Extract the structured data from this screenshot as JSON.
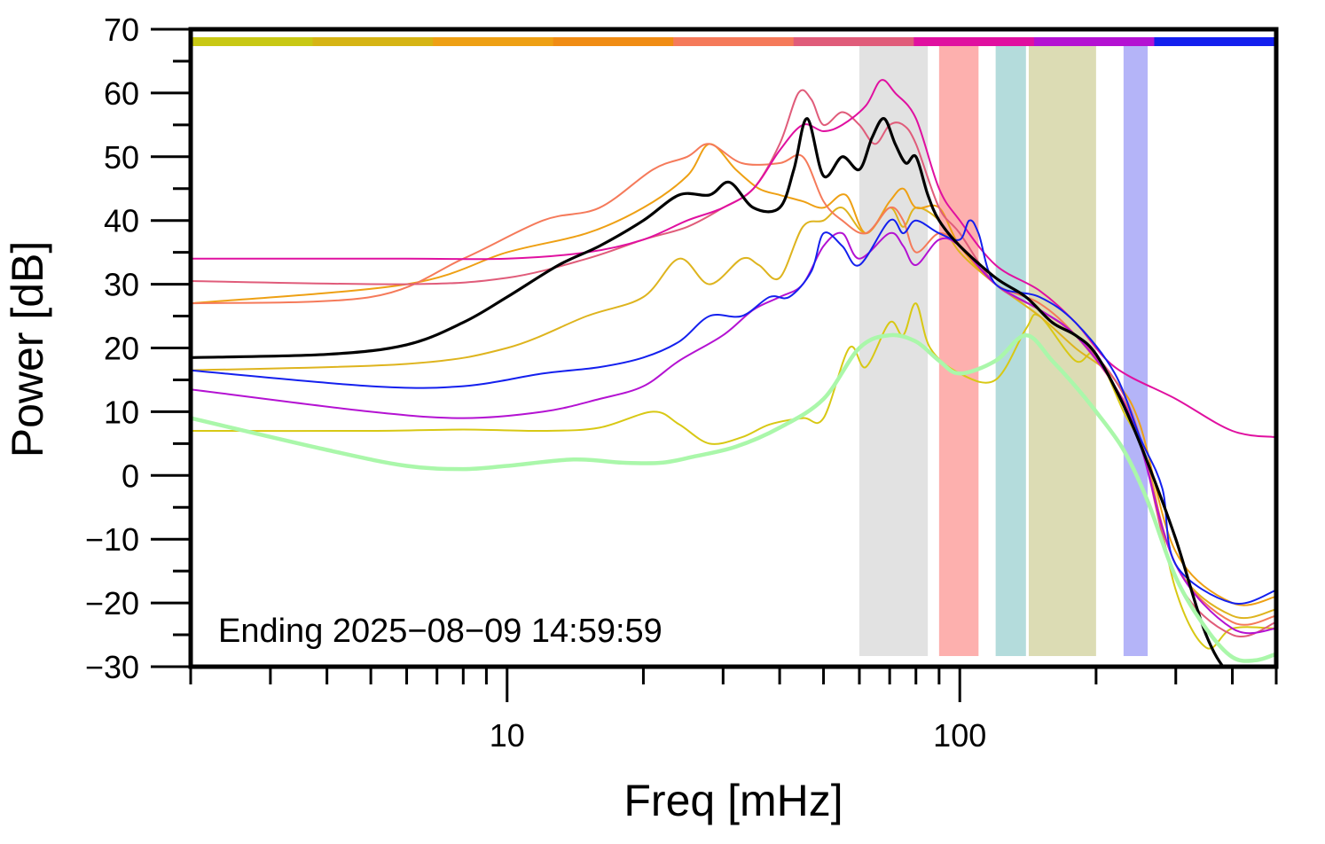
{
  "chart_data": {
    "type": "line",
    "xlabel": "Freq [mHz]",
    "ylabel": "Power [dB]",
    "x_scale": "log",
    "xlim": [
      2,
      500
    ],
    "ylim": [
      -30,
      70
    ],
    "xtick_labels": [
      {
        "value": 10,
        "label": "10"
      },
      {
        "value": 100,
        "label": "100"
      }
    ],
    "yticks": [
      -30,
      -20,
      -10,
      0,
      10,
      20,
      30,
      40,
      50,
      60,
      70
    ],
    "ytick_labels": [
      "−30",
      "−20",
      "−10",
      "0",
      "10",
      "20",
      "30",
      "40",
      "50",
      "60",
      "70"
    ],
    "annotation": "Ending 2025−08−09 14:59:59",
    "grid": false,
    "time_color_bar": [
      "#c8c814",
      "#d6b414",
      "#eea014",
      "#f08c14",
      "#f57a5a",
      "#e05c7a",
      "#e010a0",
      "#b412d2",
      "#1420ee"
    ],
    "bands": [
      {
        "x0": 60,
        "x1": 85,
        "color": "#e2e2e2"
      },
      {
        "x0": 90,
        "x1": 110,
        "color": "#fdb0ae"
      },
      {
        "x0": 120,
        "x1": 140,
        "color": "#b4dcdc"
      },
      {
        "x0": 142,
        "x1": 200,
        "color": "#dcdcb4"
      },
      {
        "x0": 230,
        "x1": 260,
        "color": "#b4b4f8"
      }
    ],
    "series": [
      {
        "color": "#d8c814",
        "width": 2,
        "points": [
          [
            2,
            7
          ],
          [
            5,
            7
          ],
          [
            8,
            7.2
          ],
          [
            12,
            7
          ],
          [
            16,
            7.5
          ],
          [
            21,
            10
          ],
          [
            24,
            8
          ],
          [
            28,
            5
          ],
          [
            33,
            6
          ],
          [
            38,
            8
          ],
          [
            45,
            9
          ],
          [
            50,
            9
          ],
          [
            57,
            20
          ],
          [
            62,
            17
          ],
          [
            70,
            24
          ],
          [
            75,
            22
          ],
          [
            80,
            27
          ],
          [
            86,
            20
          ],
          [
            100,
            16
          ],
          [
            120,
            15
          ],
          [
            140,
            23
          ],
          [
            150,
            25
          ],
          [
            180,
            18
          ],
          [
            200,
            19
          ],
          [
            230,
            10
          ],
          [
            260,
            2
          ],
          [
            300,
            -18
          ],
          [
            350,
            -27
          ],
          [
            400,
            -24
          ],
          [
            500,
            -24
          ]
        ]
      },
      {
        "color": "#deb41e",
        "width": 2,
        "points": [
          [
            2,
            16.5
          ],
          [
            6,
            17.5
          ],
          [
            10,
            20
          ],
          [
            15,
            25
          ],
          [
            20,
            28
          ],
          [
            24,
            34
          ],
          [
            28,
            30
          ],
          [
            33,
            34
          ],
          [
            36,
            33
          ],
          [
            40,
            31
          ],
          [
            45,
            39
          ],
          [
            50,
            40
          ],
          [
            55,
            42
          ],
          [
            62,
            38
          ],
          [
            70,
            42
          ],
          [
            75,
            39
          ],
          [
            80,
            42
          ],
          [
            90,
            40
          ],
          [
            100,
            35
          ],
          [
            120,
            30
          ],
          [
            150,
            25
          ],
          [
            180,
            20
          ],
          [
            220,
            15
          ],
          [
            250,
            6
          ],
          [
            300,
            -14
          ],
          [
            400,
            -22
          ],
          [
            500,
            -21
          ]
        ]
      },
      {
        "color": "#eea014",
        "width": 2,
        "points": [
          [
            2,
            27
          ],
          [
            6,
            30
          ],
          [
            10,
            35
          ],
          [
            15,
            38
          ],
          [
            20,
            42
          ],
          [
            25,
            47
          ],
          [
            28,
            52
          ],
          [
            32,
            48
          ],
          [
            36,
            45
          ],
          [
            40,
            44
          ],
          [
            45,
            43
          ],
          [
            50,
            42
          ],
          [
            56,
            44
          ],
          [
            62,
            38
          ],
          [
            70,
            43
          ],
          [
            75,
            45
          ],
          [
            80,
            42
          ],
          [
            90,
            42
          ],
          [
            100,
            36
          ],
          [
            120,
            30
          ],
          [
            150,
            26
          ],
          [
            180,
            22
          ],
          [
            220,
            15
          ],
          [
            250,
            8
          ],
          [
            300,
            -12
          ],
          [
            400,
            -20
          ],
          [
            500,
            -19
          ]
        ]
      },
      {
        "color": "#f57a5a",
        "width": 2,
        "points": [
          [
            2,
            27
          ],
          [
            5,
            28
          ],
          [
            8,
            34
          ],
          [
            12,
            40
          ],
          [
            16,
            42
          ],
          [
            21,
            48
          ],
          [
            25,
            50
          ],
          [
            28,
            52
          ],
          [
            33,
            49
          ],
          [
            40,
            49
          ],
          [
            45,
            50
          ],
          [
            50,
            43
          ],
          [
            55,
            40
          ],
          [
            62,
            38
          ],
          [
            70,
            42
          ],
          [
            75,
            40
          ],
          [
            80,
            35
          ],
          [
            90,
            38
          ],
          [
            100,
            36
          ],
          [
            120,
            30
          ],
          [
            150,
            27
          ],
          [
            180,
            22
          ],
          [
            220,
            14
          ],
          [
            250,
            6
          ],
          [
            300,
            -14
          ],
          [
            400,
            -23
          ],
          [
            500,
            -22
          ]
        ]
      },
      {
        "color": "#e05c7a",
        "width": 2,
        "points": [
          [
            2,
            30.5
          ],
          [
            6,
            30
          ],
          [
            10,
            31
          ],
          [
            15,
            34
          ],
          [
            20,
            37
          ],
          [
            25,
            39
          ],
          [
            30,
            42
          ],
          [
            35,
            45
          ],
          [
            40,
            52
          ],
          [
            44,
            60
          ],
          [
            47,
            59
          ],
          [
            50,
            55
          ],
          [
            55,
            57
          ],
          [
            60,
            55
          ],
          [
            65,
            52
          ],
          [
            70,
            55
          ],
          [
            75,
            55
          ],
          [
            80,
            52
          ],
          [
            90,
            42
          ],
          [
            100,
            38
          ],
          [
            120,
            30
          ],
          [
            150,
            26
          ],
          [
            180,
            22
          ],
          [
            220,
            15
          ],
          [
            250,
            6
          ],
          [
            300,
            -16
          ],
          [
            400,
            -25
          ],
          [
            500,
            -23
          ]
        ]
      },
      {
        "color": "#e010a0",
        "width": 2,
        "points": [
          [
            2,
            34
          ],
          [
            6,
            34
          ],
          [
            10,
            34
          ],
          [
            15,
            35
          ],
          [
            20,
            37
          ],
          [
            25,
            40
          ],
          [
            30,
            42
          ],
          [
            35,
            45
          ],
          [
            40,
            51
          ],
          [
            45,
            55
          ],
          [
            50,
            54
          ],
          [
            55,
            55
          ],
          [
            62,
            58
          ],
          [
            67,
            62
          ],
          [
            72,
            60
          ],
          [
            80,
            56
          ],
          [
            90,
            45
          ],
          [
            100,
            40
          ],
          [
            120,
            33
          ],
          [
            150,
            29
          ],
          [
            180,
            24
          ],
          [
            220,
            17
          ],
          [
            300,
            12
          ],
          [
            400,
            7
          ],
          [
            500,
            6
          ]
        ]
      },
      {
        "color": "#b412d2",
        "width": 2,
        "points": [
          [
            2,
            13.5
          ],
          [
            5,
            10
          ],
          [
            8,
            9
          ],
          [
            12,
            10
          ],
          [
            16,
            12
          ],
          [
            20,
            14
          ],
          [
            24,
            18
          ],
          [
            30,
            22
          ],
          [
            35,
            26
          ],
          [
            40,
            28
          ],
          [
            45,
            30
          ],
          [
            50,
            36
          ],
          [
            55,
            38
          ],
          [
            60,
            34
          ],
          [
            70,
            38
          ],
          [
            75,
            36
          ],
          [
            80,
            33
          ],
          [
            90,
            37
          ],
          [
            100,
            36
          ],
          [
            120,
            30
          ],
          [
            150,
            26
          ],
          [
            180,
            22
          ],
          [
            220,
            14
          ],
          [
            250,
            5
          ],
          [
            300,
            -14
          ],
          [
            400,
            -24
          ],
          [
            500,
            -24
          ]
        ]
      },
      {
        "color": "#1420ee",
        "width": 2,
        "points": [
          [
            2,
            16.5
          ],
          [
            5,
            14
          ],
          [
            8,
            14
          ],
          [
            12,
            16
          ],
          [
            16,
            17
          ],
          [
            20,
            18.5
          ],
          [
            24,
            21
          ],
          [
            28,
            25
          ],
          [
            33,
            25
          ],
          [
            38,
            28
          ],
          [
            42,
            28
          ],
          [
            47,
            32
          ],
          [
            50,
            38
          ],
          [
            55,
            36
          ],
          [
            60,
            33
          ],
          [
            70,
            40
          ],
          [
            75,
            38
          ],
          [
            80,
            40
          ],
          [
            90,
            38
          ],
          [
            100,
            37
          ],
          [
            105,
            40
          ],
          [
            110,
            38
          ],
          [
            120,
            30
          ],
          [
            150,
            28
          ],
          [
            180,
            24
          ],
          [
            220,
            16
          ],
          [
            250,
            6
          ],
          [
            280,
            -2
          ],
          [
            300,
            -14
          ],
          [
            400,
            -20
          ],
          [
            500,
            -18
          ]
        ]
      },
      {
        "color": "#000000",
        "width": 3.2,
        "points": [
          [
            2,
            18.5
          ],
          [
            4,
            19
          ],
          [
            6,
            20.5
          ],
          [
            8,
            24
          ],
          [
            10,
            28
          ],
          [
            13,
            33
          ],
          [
            16,
            36
          ],
          [
            20,
            40
          ],
          [
            24,
            44
          ],
          [
            28,
            44
          ],
          [
            31,
            46
          ],
          [
            35,
            42
          ],
          [
            40,
            42
          ],
          [
            43,
            48
          ],
          [
            46,
            56
          ],
          [
            50,
            47
          ],
          [
            55,
            50
          ],
          [
            60,
            48
          ],
          [
            64,
            53
          ],
          [
            68,
            56
          ],
          [
            72,
            52
          ],
          [
            76,
            49
          ],
          [
            80,
            50
          ],
          [
            85,
            44
          ],
          [
            90,
            40
          ],
          [
            100,
            36
          ],
          [
            120,
            31
          ],
          [
            140,
            28
          ],
          [
            160,
            24
          ],
          [
            180,
            22
          ],
          [
            200,
            19
          ],
          [
            230,
            11
          ],
          [
            260,
            2
          ],
          [
            300,
            -10
          ],
          [
            350,
            -25
          ],
          [
            400,
            -32
          ],
          [
            500,
            -40
          ]
        ]
      },
      {
        "color": "#aaf7aa",
        "width": 4.5,
        "points": [
          [
            2,
            9
          ],
          [
            4,
            4
          ],
          [
            6,
            1.5
          ],
          [
            8,
            1
          ],
          [
            10,
            1.5
          ],
          [
            14,
            2.5
          ],
          [
            18,
            2
          ],
          [
            22,
            2
          ],
          [
            26,
            3
          ],
          [
            32,
            4.5
          ],
          [
            40,
            7.5
          ],
          [
            50,
            12
          ],
          [
            60,
            20
          ],
          [
            70,
            22
          ],
          [
            80,
            21
          ],
          [
            90,
            18
          ],
          [
            100,
            16
          ],
          [
            120,
            18
          ],
          [
            140,
            22
          ],
          [
            160,
            18
          ],
          [
            180,
            14
          ],
          [
            200,
            10
          ],
          [
            230,
            4
          ],
          [
            260,
            -4
          ],
          [
            300,
            -16
          ],
          [
            350,
            -24
          ],
          [
            400,
            -28.5
          ],
          [
            450,
            -29
          ],
          [
            500,
            -28
          ]
        ]
      }
    ]
  }
}
